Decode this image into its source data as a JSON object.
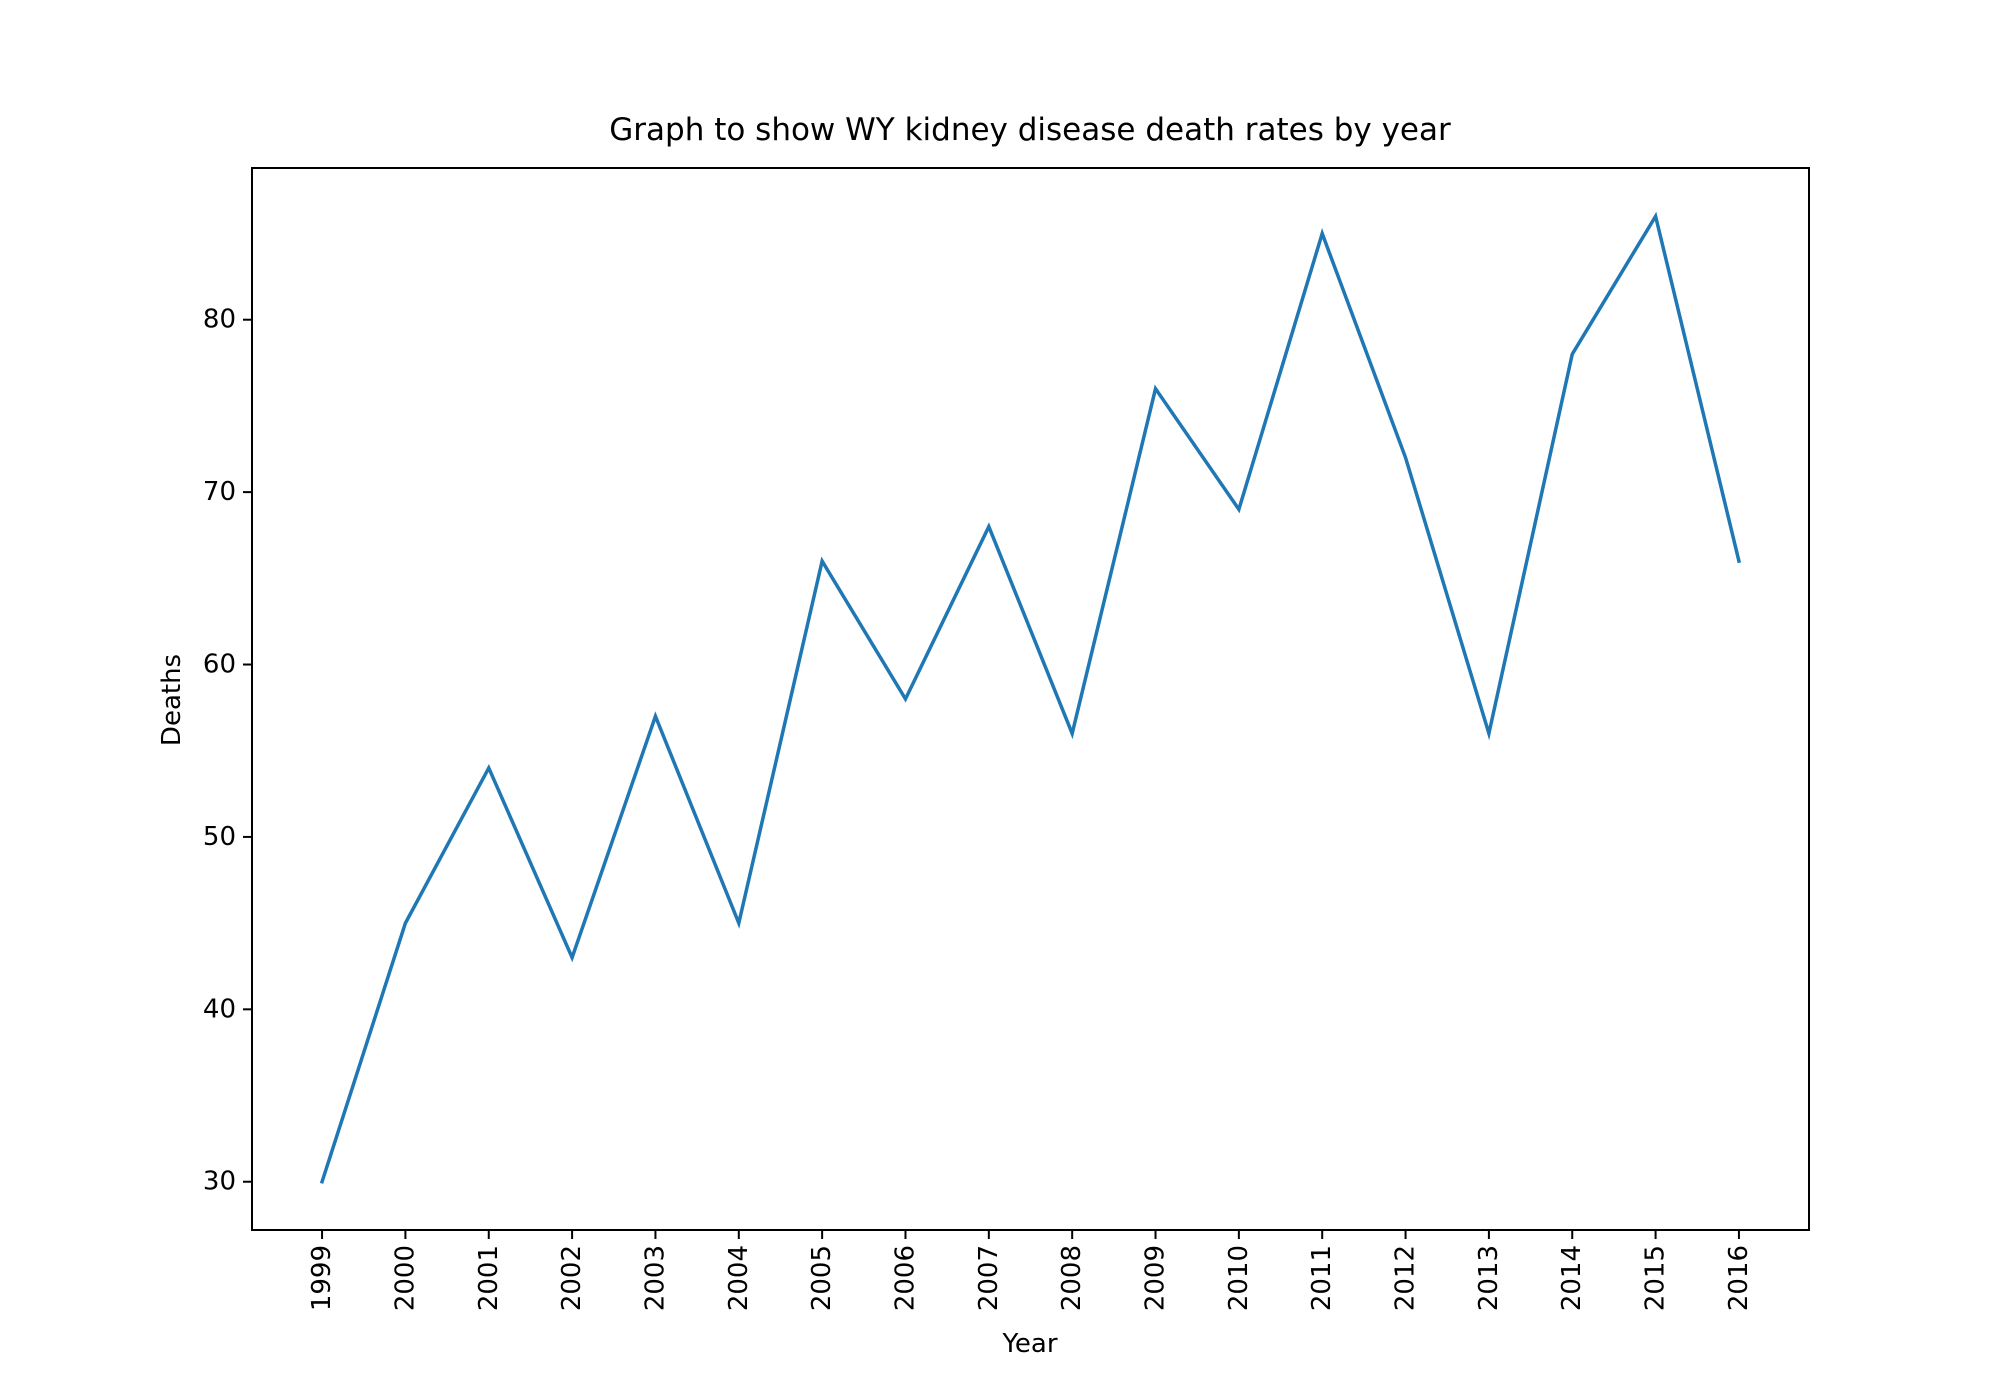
{
  "chart_data": {
    "type": "line",
    "title": "Graph to show WY kidney disease death rates by year",
    "xlabel": "Year",
    "ylabel": "Deaths",
    "categories": [
      "1999",
      "2000",
      "2001",
      "2002",
      "2003",
      "2004",
      "2005",
      "2006",
      "2007",
      "2008",
      "2009",
      "2010",
      "2011",
      "2012",
      "2013",
      "2014",
      "2015",
      "2016"
    ],
    "series": [
      {
        "values": [
          30,
          45,
          54,
          43,
          57,
          45,
          66,
          58,
          68,
          56,
          76,
          69,
          85,
          72,
          56,
          78,
          86,
          66
        ],
        "color": "#1f77b4"
      }
    ],
    "ylim": [
      27.2,
      88.8
    ],
    "yticks": [
      30,
      40,
      50,
      60,
      70,
      80
    ],
    "grid": false,
    "legend": false
  }
}
